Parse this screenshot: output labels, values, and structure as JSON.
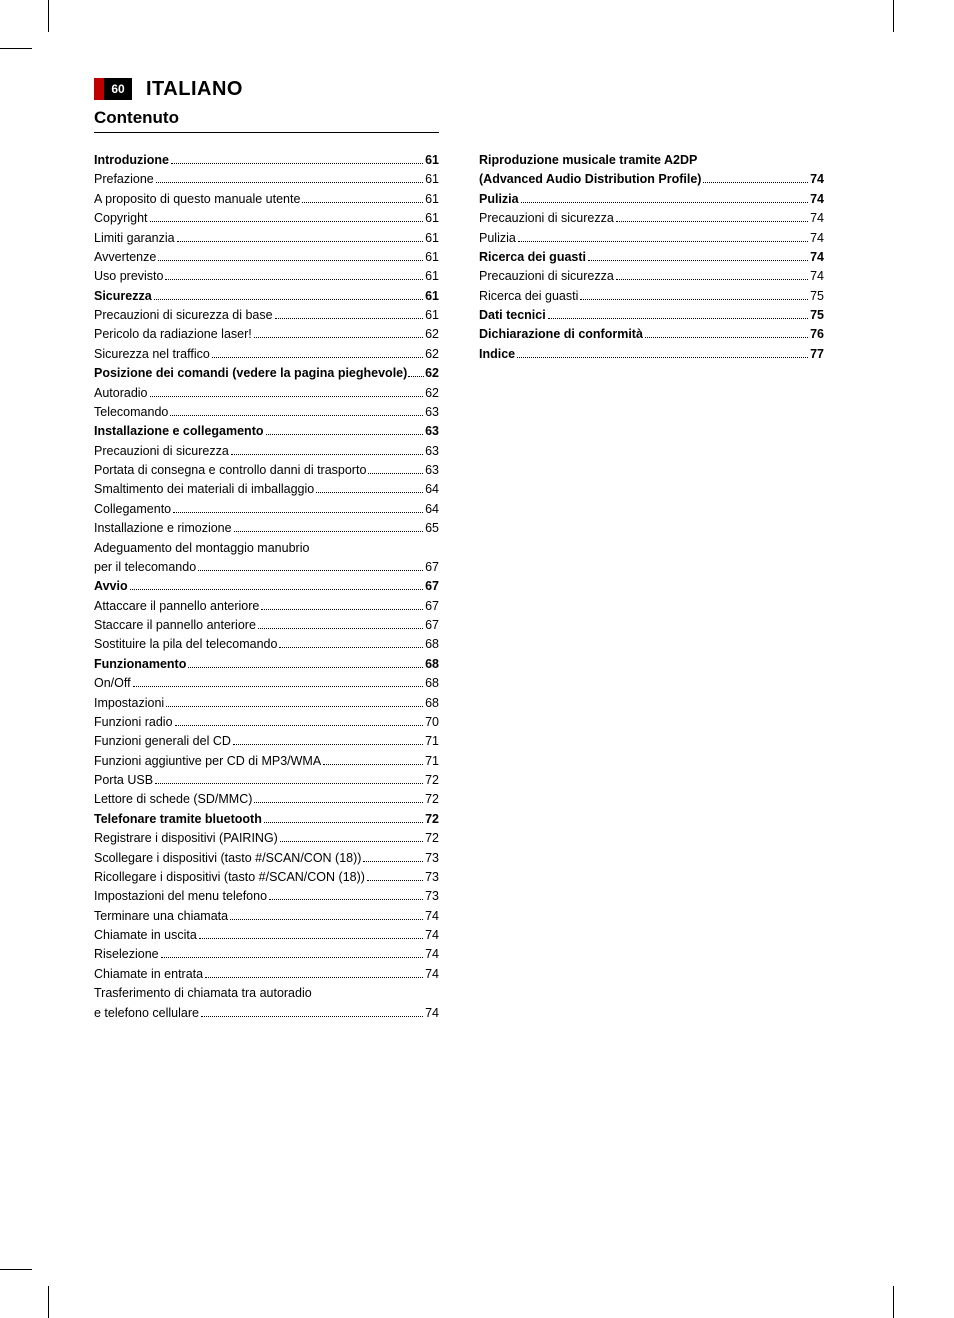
{
  "header": {
    "page_number": "60",
    "language": "ITALIANO",
    "section": "Contenuto"
  },
  "colors": {
    "accent_red": "#c00000",
    "black": "#000000",
    "white": "#ffffff"
  },
  "typography": {
    "title_fontsize": 20,
    "section_fontsize": 17,
    "body_fontsize": 12.5,
    "line_height": 1.55
  },
  "toc": {
    "left": [
      {
        "label": "Introduzione",
        "page": "61",
        "bold": true
      },
      {
        "label": "Prefazione",
        "page": "61"
      },
      {
        "label": "A proposito di questo manuale utente",
        "page": "61"
      },
      {
        "label": "Copyright",
        "page": "61"
      },
      {
        "label": "Limiti garanzia",
        "page": "61"
      },
      {
        "label": "Avvertenze",
        "page": "61"
      },
      {
        "label": "Uso previsto",
        "page": "61"
      },
      {
        "label": "Sicurezza",
        "page": "61",
        "bold": true
      },
      {
        "label": "Precauzioni di sicurezza di base",
        "page": "61"
      },
      {
        "label": "Pericolo da radiazione laser!",
        "page": "62"
      },
      {
        "label": "Sicurezza nel traffico",
        "page": "62"
      },
      {
        "label": "Posizione dei comandi (vedere la pagina pieghevole)",
        "page": "62",
        "bold": true,
        "tight": true
      },
      {
        "label": "Autoradio",
        "page": "62"
      },
      {
        "label": "Telecomando",
        "page": "63"
      },
      {
        "label": "Installazione e collegamento",
        "page": "63",
        "bold": true
      },
      {
        "label": "Precauzioni di sicurezza",
        "page": "63"
      },
      {
        "label": "Portata di consegna e controllo danni di trasporto",
        "page": "63"
      },
      {
        "label": "Smaltimento dei materiali di imballaggio",
        "page": "64"
      },
      {
        "label": "Collegamento",
        "page": "64"
      },
      {
        "label": "Installazione e rimozione",
        "page": "65"
      },
      {
        "label": "Adeguamento del montaggio manubrio",
        "nopage": true
      },
      {
        "label": "per il telecomando",
        "page": "67"
      },
      {
        "label": "Avvio",
        "page": "67",
        "bold": true
      },
      {
        "label": "Attaccare il pannello anteriore",
        "page": "67"
      },
      {
        "label": "Staccare il pannello anteriore",
        "page": "67"
      },
      {
        "label": "Sostituire la pila del telecomando",
        "page": "68"
      },
      {
        "label": "Funzionamento",
        "page": "68",
        "bold": true
      },
      {
        "label": "On/Off",
        "page": "68"
      },
      {
        "label": "Impostazioni",
        "page": "68"
      },
      {
        "label": "Funzioni radio",
        "page": "70"
      },
      {
        "label": "Funzioni generali del CD ",
        "page": "71"
      },
      {
        "label": "Funzioni aggiuntive per CD di MP3/WMA",
        "page": "71"
      },
      {
        "label": "Porta USB",
        "page": "72"
      },
      {
        "label": "Lettore di schede (SD/MMC)",
        "page": "72"
      },
      {
        "label": "Telefonare tramite bluetooth",
        "page": "72",
        "bold": true
      },
      {
        "label": "Registrare i dispositivi (PAIRING)",
        "page": "72"
      },
      {
        "label": "Scollegare i dispositivi (tasto #/SCAN/CON (18))",
        "page": "73"
      },
      {
        "label": "Ricollegare i dispositivi (tasto #/SCAN/CON (18))",
        "page": "73"
      },
      {
        "label": "Impostazioni del menu telefono",
        "page": "73"
      },
      {
        "label": "Terminare una chiamata",
        "page": "74"
      },
      {
        "label": "Chiamate in uscita",
        "page": "74"
      },
      {
        "label": "Riselezione",
        "page": "74"
      },
      {
        "label": "Chiamate in entrata",
        "page": "74"
      },
      {
        "label": "Trasferimento di chiamata tra autoradio",
        "nopage": true
      },
      {
        "label": "e telefono cellulare",
        "page": "74"
      }
    ],
    "right": [
      {
        "label": "Riproduzione musicale tramite A2DP",
        "nopage": true,
        "bold": true
      },
      {
        "label": "(Advanced Audio Distribution Profile)",
        "page": "74",
        "bold": true
      },
      {
        "label": "Pulizia",
        "page": "74",
        "bold": true
      },
      {
        "label": "Precauzioni di sicurezza",
        "page": "74"
      },
      {
        "label": "Pulizia",
        "page": "74"
      },
      {
        "label": "Ricerca dei guasti",
        "page": "74",
        "bold": true
      },
      {
        "label": "Precauzioni di sicurezza",
        "page": "74"
      },
      {
        "label": "Ricerca dei guasti",
        "page": "75"
      },
      {
        "label": "Dati tecnici",
        "page": "75",
        "bold": true
      },
      {
        "label": "Dichiarazione di conformità",
        "page": "76",
        "bold": true
      },
      {
        "label": "Indice",
        "page": "77",
        "bold": true
      }
    ]
  }
}
